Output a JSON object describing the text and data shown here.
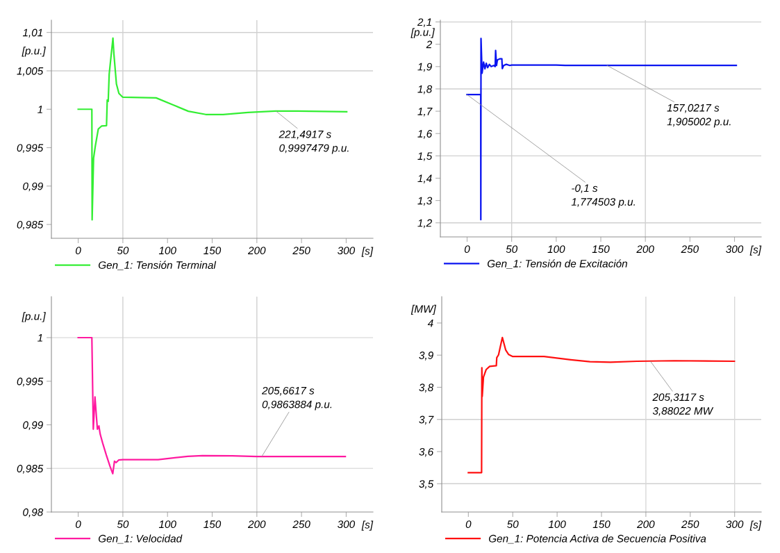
{
  "chart_data": [
    {
      "type": "line",
      "xlabel": "[s]",
      "ylabel": "[p.u.]",
      "legend": "bottom",
      "grid": false,
      "xlim": [
        -30,
        330
      ],
      "ylim": [
        0.9832,
        1.0116
      ],
      "xticks": [
        0,
        50,
        100,
        150,
        200,
        250,
        300
      ],
      "yticks": [
        {
          "value": 0.985,
          "label": "0,985"
        },
        {
          "value": 0.99,
          "label": "0,99"
        },
        {
          "value": 0.995,
          "label": "0,995"
        },
        1,
        {
          "value": 1.005,
          "label": "1,005"
        },
        {
          "value": 1.01,
          "label": "1,01"
        }
      ],
      "ref_lines": [
        {
          "axis": "y",
          "value": 1.01,
          "color": "#d0d0d0"
        },
        {
          "axis": "y",
          "value": 1.005,
          "color": "#d0d0d0"
        },
        {
          "axis": "x",
          "value": 50,
          "color": "#d0d0d0"
        },
        {
          "axis": "x",
          "value": 200,
          "color": "#d0d0d0"
        }
      ],
      "annotations": [
        {
          "text": "221,4917 s\n0,9997479 p.u.",
          "x": 221.4917,
          "y": 0.9997479
        }
      ],
      "series": [
        {
          "name": "Gen_1: Tensión Terminal",
          "color": "#33ee33",
          "x": [
            0,
            15.3,
            15.6,
            17.2,
            19.2,
            22.5,
            26.1,
            31.7,
            32.5,
            33.6,
            34.7,
            38.9,
            40,
            42.8,
            45.6,
            49.7,
            87.2,
            106.7,
            123.3,
            142.8,
            162.2,
            190,
            220.6,
            245.6,
            300.6
          ],
          "values": [
            1.0,
            1.0,
            0.9856,
            0.99361,
            0.99523,
            0.99742,
            0.99781,
            0.99787,
            1.0012,
            1.00103,
            1.00458,
            1.00926,
            1.00716,
            1.00329,
            1.00206,
            1.00158,
            1.00148,
            1.00055,
            0.99974,
            0.99932,
            0.99932,
            0.99958,
            0.99977,
            0.99977,
            0.99968
          ]
        }
      ]
    },
    {
      "type": "line",
      "xlabel": "[s]",
      "ylabel": "[p.u.]",
      "legend": "bottom",
      "grid": false,
      "xlim": [
        -30,
        330
      ],
      "ylim": [
        1.137,
        2.108
      ],
      "xticks": [
        0,
        50,
        100,
        150,
        200,
        250,
        300
      ],
      "yticks": [
        {
          "value": 1.2,
          "label": "1,2"
        },
        {
          "value": 1.3,
          "label": "1,3"
        },
        {
          "value": 1.4,
          "label": "1,4"
        },
        {
          "value": 1.5,
          "label": "1,5"
        },
        {
          "value": 1.6,
          "label": "1,6"
        },
        {
          "value": 1.7,
          "label": "1,7"
        },
        {
          "value": 1.8,
          "label": "1,8"
        },
        {
          "value": 1.9,
          "label": "1,9"
        },
        2,
        {
          "value": 2.1,
          "label": "2,1"
        }
      ],
      "ref_lines": [
        {
          "axis": "y",
          "value": 2.1,
          "color": "#d0d0d0"
        },
        {
          "axis": "y",
          "value": 1.8,
          "color": "#d0d0d0"
        },
        {
          "axis": "y",
          "value": 1.5,
          "color": "#d0d0d0"
        },
        {
          "axis": "y",
          "value": 1.2,
          "color": "#d0d0d0"
        },
        {
          "axis": "x",
          "value": 50,
          "color": "#d0d0d0"
        },
        {
          "axis": "x",
          "value": 200,
          "color": "#d0d0d0"
        }
      ],
      "annotations": [
        {
          "text": "157,0217 s\n1,905002 p.u.",
          "x": 157.0217,
          "y": 1.905002
        },
        {
          "text": "-0,1 s\n1,774503 p.u.",
          "x": -0.1,
          "y": 1.774503
        }
      ],
      "series": [
        {
          "name": "Gen_1: Tensión de Excitación",
          "color": "#0a14f0",
          "x": [
            -0.1,
            15.3,
            15.4,
            15.6,
            16.8,
            18.5,
            20,
            21.5,
            23,
            25,
            27,
            30,
            31.5,
            32,
            33,
            34,
            37,
            39,
            39.5,
            41,
            44,
            48,
            50,
            100,
            110,
            157,
            302
          ],
          "values": [
            1.774503,
            1.7745,
            1.214,
            2.026,
            1.87,
            1.92,
            1.89,
            1.915,
            1.895,
            1.91,
            1.9,
            1.905,
            1.9,
            1.972,
            1.905,
            1.93,
            1.935,
            1.935,
            1.891,
            1.905,
            1.91,
            1.905,
            1.907,
            1.907,
            1.905,
            1.905002,
            1.905
          ]
        }
      ]
    },
    {
      "type": "line",
      "xlabel": "[s]",
      "ylabel": "[p.u.]",
      "legend": "bottom",
      "grid": false,
      "xlim": [
        -30,
        330
      ],
      "ylim": [
        0.98,
        1.0047
      ],
      "xticks": [
        0,
        50,
        100,
        150,
        200,
        250,
        300
      ],
      "yticks": [
        {
          "value": 0.98,
          "label": "0,98"
        },
        {
          "value": 0.985,
          "label": "0,985"
        },
        {
          "value": 0.99,
          "label": "0,99"
        },
        {
          "value": 0.995,
          "label": "0,995"
        },
        1
      ],
      "ref_lines": [
        {
          "axis": "y",
          "value": 1,
          "color": "#e0e0e0"
        },
        {
          "axis": "y",
          "value": 0.985,
          "color": "#e0e0e0"
        },
        {
          "axis": "x",
          "value": 50,
          "color": "#d0d0d0"
        },
        {
          "axis": "x",
          "value": 200,
          "color": "#d0d0d0"
        }
      ],
      "annotations": [
        {
          "text": "205,6617 s\n0,9863884 p.u.",
          "x": 205.6617,
          "y": 0.9863884
        }
      ],
      "series": [
        {
          "name": "Gen_1: Velocidad",
          "color": "#ff1aa0",
          "x": [
            0,
            15.3,
            16.9,
            18.8,
            20.4,
            21.5,
            23.2,
            24.6,
            27.3,
            31.5,
            35.6,
            38.7,
            40.6,
            42.5,
            45.3,
            50,
            89.5,
            122.7,
            139,
            172.4,
            200,
            299
          ],
          "values": [
            1.0,
            1.0,
            0.9895,
            0.99319,
            0.99092,
            0.9895,
            0.98987,
            0.98894,
            0.98794,
            0.98652,
            0.98525,
            0.9844,
            0.98582,
            0.98567,
            0.98596,
            0.98601,
            0.98601,
            0.98638,
            0.98647,
            0.98644,
            0.98636,
            0.98636
          ]
        }
      ]
    },
    {
      "type": "line",
      "xlabel": "[s]",
      "ylabel": "[MW]",
      "legend": "bottom",
      "grid": false,
      "xlim": [
        -30,
        330
      ],
      "ylim": [
        3.412,
        4.082
      ],
      "xticks": [
        0,
        50,
        100,
        150,
        200,
        250,
        300
      ],
      "yticks": [
        {
          "value": 3.5,
          "label": "3,5"
        },
        {
          "value": 3.6,
          "label": "3,6"
        },
        {
          "value": 3.7,
          "label": "3,7"
        },
        {
          "value": 3.8,
          "label": "3,8"
        },
        {
          "value": 3.9,
          "label": "3,9"
        },
        4
      ],
      "ref_lines": [
        {
          "axis": "y",
          "value": 3.7,
          "color": "#d0d0d0"
        },
        {
          "axis": "y",
          "value": 3.5,
          "color": "#d0d0d0"
        },
        {
          "axis": "x",
          "value": 200,
          "color": "#d8d8d8"
        },
        {
          "axis": "x",
          "value": 300,
          "color": "#d8d8d8"
        }
      ],
      "annotations": [
        {
          "text": "205,3117 s\n3,88022 MW",
          "x": 205.3117,
          "y": 3.88022
        }
      ],
      "series": [
        {
          "name": "Gen_1: Potencia Activa de Secuencia Positiva",
          "color": "#ff1010",
          "x": [
            0,
            14.9,
            15.2,
            15.6,
            17,
            20,
            24,
            31.5,
            32,
            34,
            38.3,
            42,
            45.3,
            50,
            85.2,
            115.4,
            136.9,
            160.1,
            189.9,
            231.8,
            299.7
          ],
          "values": [
            3.5344,
            3.5344,
            3.861,
            3.7717,
            3.8317,
            3.855,
            3.865,
            3.867,
            3.892,
            3.901,
            3.955,
            3.9165,
            3.902,
            3.8957,
            3.8957,
            3.8857,
            3.8795,
            3.878,
            3.881,
            3.8826,
            3.881
          ]
        }
      ]
    }
  ]
}
